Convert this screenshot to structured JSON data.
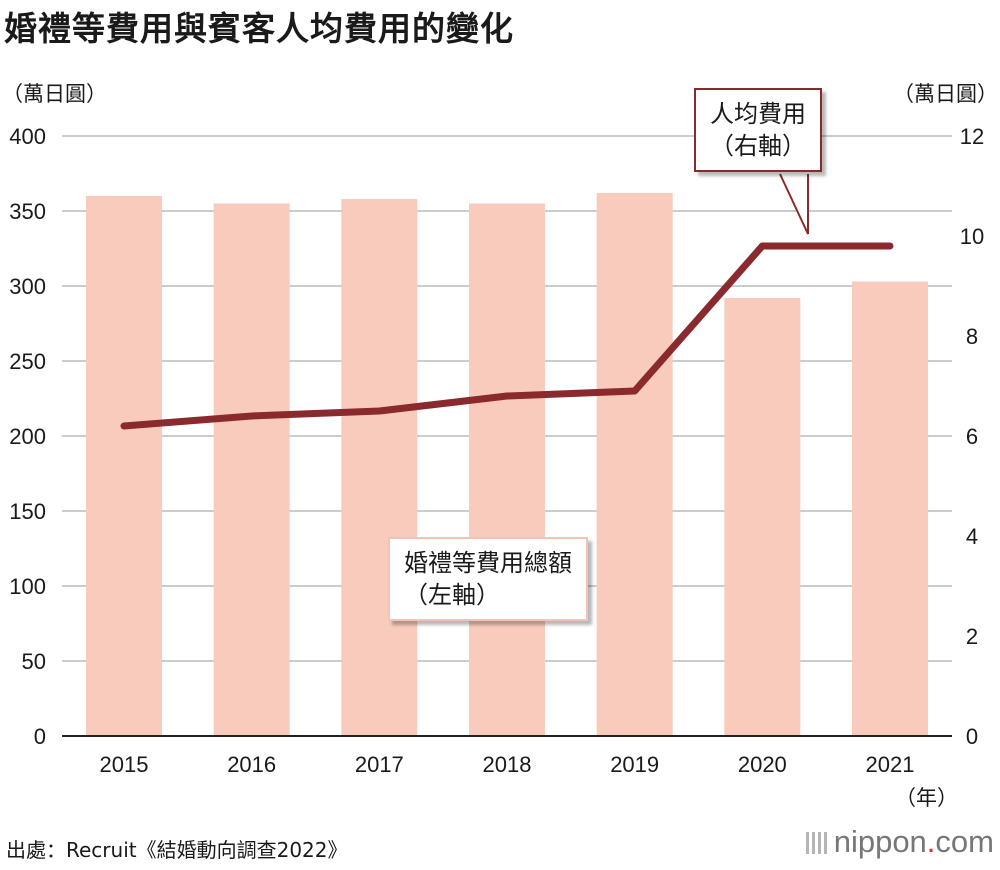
{
  "title": "婚禮等費用與賓客人均費用的變化",
  "left_unit": "（萬日圓）",
  "right_unit": "（萬日圓）",
  "x_unit": "（年）",
  "source": "出處：Recruit《結婚動向調查2022》",
  "logo": {
    "text": "nippon",
    "dot": ".",
    "suffix": "com"
  },
  "colors": {
    "bar": "#f8cbbd",
    "line": "#8b2a2e",
    "grid": "#cccccc"
  },
  "chart_data": {
    "type": "bar+line",
    "categories": [
      "2015",
      "2016",
      "2017",
      "2018",
      "2019",
      "2020",
      "2021"
    ],
    "series": [
      {
        "name": "婚禮等費用總額",
        "axis": "left",
        "type": "bar",
        "values": [
          360,
          355,
          358,
          355,
          362,
          292,
          303
        ]
      },
      {
        "name": "人均費用",
        "axis": "right",
        "type": "line",
        "values": [
          6.2,
          6.4,
          6.5,
          6.8,
          6.9,
          9.8,
          9.8
        ]
      }
    ],
    "left_axis": {
      "ylim": [
        0,
        400
      ],
      "ticks": [
        "0",
        "50",
        "100",
        "150",
        "200",
        "250",
        "300",
        "350",
        "400"
      ]
    },
    "right_axis": {
      "ylim": [
        0,
        12
      ],
      "ticks": [
        "0",
        "2",
        "4",
        "6",
        "8",
        "10",
        "12"
      ]
    },
    "annotations": {
      "line_label": [
        "人均費用",
        "（右軸）"
      ],
      "bar_label": [
        "婚禮等費用總額",
        "（左軸）"
      ]
    },
    "grid": true
  }
}
